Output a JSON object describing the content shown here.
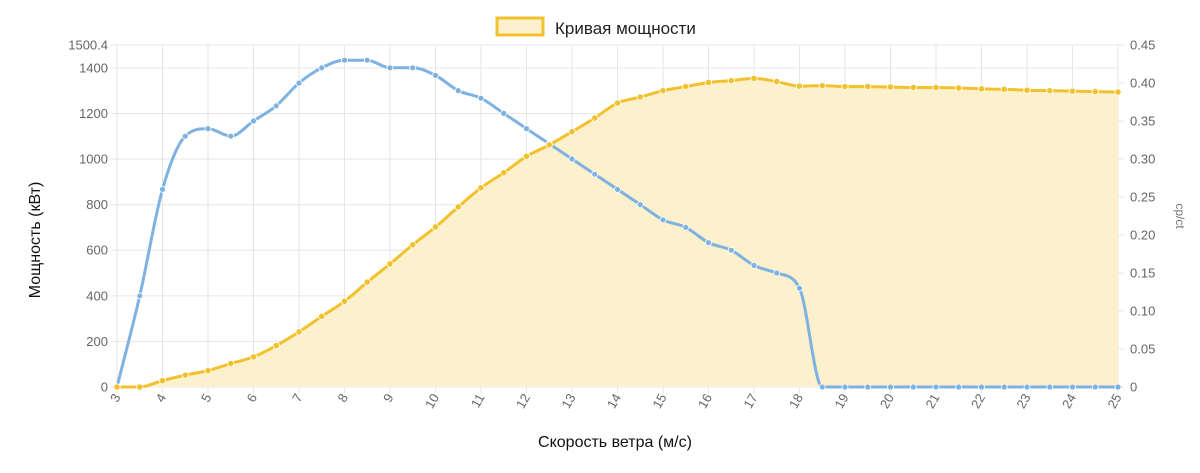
{
  "chart_data": {
    "type": "line",
    "legend": {
      "position": "top",
      "label": "Кривая мощности"
    },
    "xlabel": "Скорость ветра (м/с)",
    "ylabel": "Мощность (кВт)",
    "y2label": "cp/ct",
    "xlim": [
      3,
      25
    ],
    "ylim": [
      0,
      1500.4
    ],
    "y2lim": [
      0,
      0.45
    ],
    "x_ticks": [
      "3",
      "4",
      "5",
      "6",
      "7",
      "8",
      "9",
      "10",
      "11",
      "12",
      "13",
      "14",
      "15",
      "16",
      "17",
      "18",
      "19",
      "20",
      "21",
      "22",
      "23",
      "24",
      "25"
    ],
    "y_ticks": [
      "0",
      "200",
      "400",
      "600",
      "800",
      "1000",
      "1200",
      "1400",
      "1500.4"
    ],
    "y2_ticks": [
      "0",
      "0.05",
      "0.10",
      "0.15",
      "0.20",
      "0.25",
      "0.30",
      "0.35",
      "0.40",
      "0.45"
    ],
    "grid": true,
    "colors": {
      "power": "#f2c12e",
      "power_fill": "#fdf0cc",
      "cp": "#7eb2e0"
    },
    "series": [
      {
        "name": "Кривая мощности",
        "axis": "left",
        "fill": true,
        "x": [
          3,
          3.5,
          4,
          4.5,
          5,
          5.5,
          6,
          6.5,
          7,
          7.5,
          8,
          8.5,
          9,
          9.5,
          10,
          10.5,
          11,
          11.5,
          12,
          12.5,
          13,
          13.5,
          14,
          14.5,
          15,
          15.5,
          16,
          16.5,
          17,
          17.5,
          18,
          18.5,
          19,
          19.5,
          20,
          20.5,
          21,
          21.5,
          22,
          22.5,
          23,
          23.5,
          24,
          24.5,
          25
        ],
        "values": [
          0,
          0,
          28,
          52,
          72,
          103,
          132,
          182,
          242,
          310,
          376,
          460,
          540,
          624,
          702,
          790,
          874,
          940,
          1012,
          1062,
          1120,
          1180,
          1246,
          1272,
          1300,
          1318,
          1336,
          1344,
          1354,
          1340,
          1320,
          1322,
          1318,
          1318,
          1316,
          1314,
          1314,
          1312,
          1308,
          1306,
          1302,
          1300,
          1298,
          1296,
          1294
        ]
      },
      {
        "axis": "right",
        "fill": false,
        "x": [
          3,
          3.5,
          4,
          4.5,
          5,
          5.5,
          6,
          6.5,
          7,
          7.5,
          8,
          8.5,
          9,
          9.5,
          10,
          10.5,
          11,
          11.5,
          12,
          12.5,
          13,
          13.5,
          14,
          14.5,
          15,
          15.5,
          16,
          16.5,
          17,
          17.5,
          18,
          18.5,
          19,
          19.5,
          20,
          20.5,
          21,
          21.5,
          22,
          22.5,
          23,
          23.5,
          24,
          24.5,
          25
        ],
        "values": [
          0,
          0.12,
          0.26,
          0.33,
          0.34,
          0.33,
          0.35,
          0.37,
          0.4,
          0.42,
          0.43,
          0.43,
          0.42,
          0.42,
          0.41,
          0.39,
          0.38,
          0.36,
          0.34,
          0.32,
          0.3,
          0.28,
          0.26,
          0.24,
          0.22,
          0.21,
          0.19,
          0.18,
          0.16,
          0.15,
          0.13,
          0,
          0,
          0,
          0,
          0,
          0,
          0,
          0,
          0,
          0,
          0,
          0,
          0,
          0
        ]
      }
    ]
  }
}
